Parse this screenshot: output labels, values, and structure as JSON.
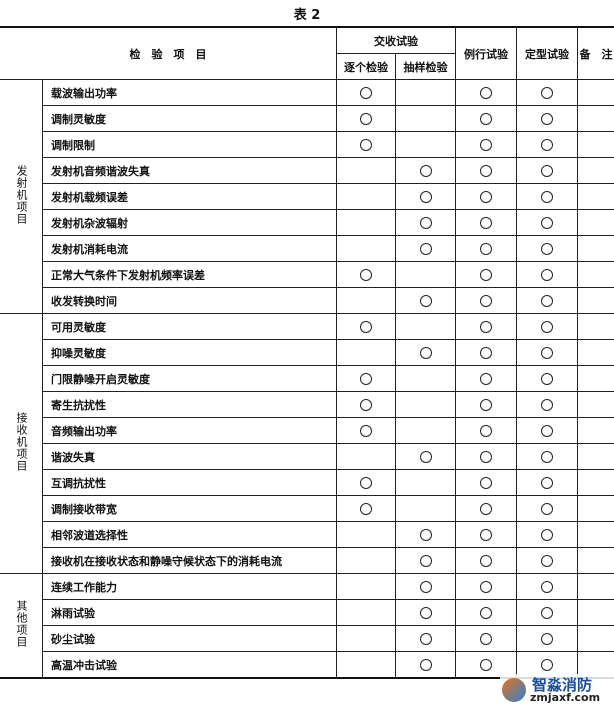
{
  "title": "表 2",
  "header": {
    "item": "检　验　项　目",
    "acceptance": "交收试验",
    "individual": "逐个检验",
    "sampling": "抽样检验",
    "routine": "例行试验",
    "type": "定型试验",
    "remarks": "备　注"
  },
  "groups": [
    {
      "label": "发射机项目",
      "rows": [
        {
          "item": "载波输出功率",
          "marks": [
            "individual",
            "routine",
            "type"
          ]
        },
        {
          "item": "调制灵敏度",
          "marks": [
            "individual",
            "routine",
            "type"
          ]
        },
        {
          "item": "调制限制",
          "marks": [
            "individual",
            "routine",
            "type"
          ]
        },
        {
          "item": "发射机音频谐波失真",
          "marks": [
            "sampling",
            "routine",
            "type"
          ]
        },
        {
          "item": "发射机载频误差",
          "marks": [
            "sampling",
            "routine",
            "type"
          ]
        },
        {
          "item": "发射机杂波辐射",
          "marks": [
            "sampling",
            "routine",
            "type"
          ]
        },
        {
          "item": "发射机消耗电流",
          "marks": [
            "sampling",
            "routine",
            "type"
          ]
        },
        {
          "item": "正常大气条件下发射机频率误差",
          "marks": [
            "individual",
            "routine",
            "type"
          ]
        },
        {
          "item": "收发转换时间",
          "marks": [
            "sampling",
            "routine",
            "type"
          ]
        }
      ]
    },
    {
      "label": "接收机项目",
      "rows": [
        {
          "item": "可用灵敏度",
          "marks": [
            "individual",
            "routine",
            "type"
          ]
        },
        {
          "item": "抑噪灵敏度",
          "marks": [
            "sampling",
            "routine",
            "type"
          ]
        },
        {
          "item": "门限静噪开启灵敏度",
          "marks": [
            "individual",
            "routine",
            "type"
          ]
        },
        {
          "item": "寄生抗扰性",
          "marks": [
            "individual",
            "routine",
            "type"
          ]
        },
        {
          "item": "音频输出功率",
          "marks": [
            "individual",
            "routine",
            "type"
          ]
        },
        {
          "item": "谐波失真",
          "marks": [
            "sampling",
            "routine",
            "type"
          ]
        },
        {
          "item": "互调抗扰性",
          "marks": [
            "individual",
            "routine",
            "type"
          ]
        },
        {
          "item": "调制接收带宽",
          "marks": [
            "individual",
            "routine",
            "type"
          ]
        },
        {
          "item": "相邻波道选择性",
          "marks": [
            "sampling",
            "routine",
            "type"
          ]
        },
        {
          "item": "接收机在接收状态和静噪守候状态下的消耗电流",
          "marks": [
            "sampling",
            "routine",
            "type"
          ]
        }
      ]
    },
    {
      "label": "其他项目",
      "rows": [
        {
          "item": "连续工作能力",
          "marks": [
            "sampling",
            "routine",
            "type"
          ]
        },
        {
          "item": "淋雨试验",
          "marks": [
            "sampling",
            "routine",
            "type"
          ]
        },
        {
          "item": "砂尘试验",
          "marks": [
            "sampling",
            "routine",
            "type"
          ]
        },
        {
          "item": "高温冲击试验",
          "marks": [
            "sampling",
            "routine",
            "type"
          ]
        }
      ]
    }
  ],
  "mark_symbol": "○",
  "watermark": {
    "name": "智淼消防",
    "url": "zmjaxf.com"
  }
}
